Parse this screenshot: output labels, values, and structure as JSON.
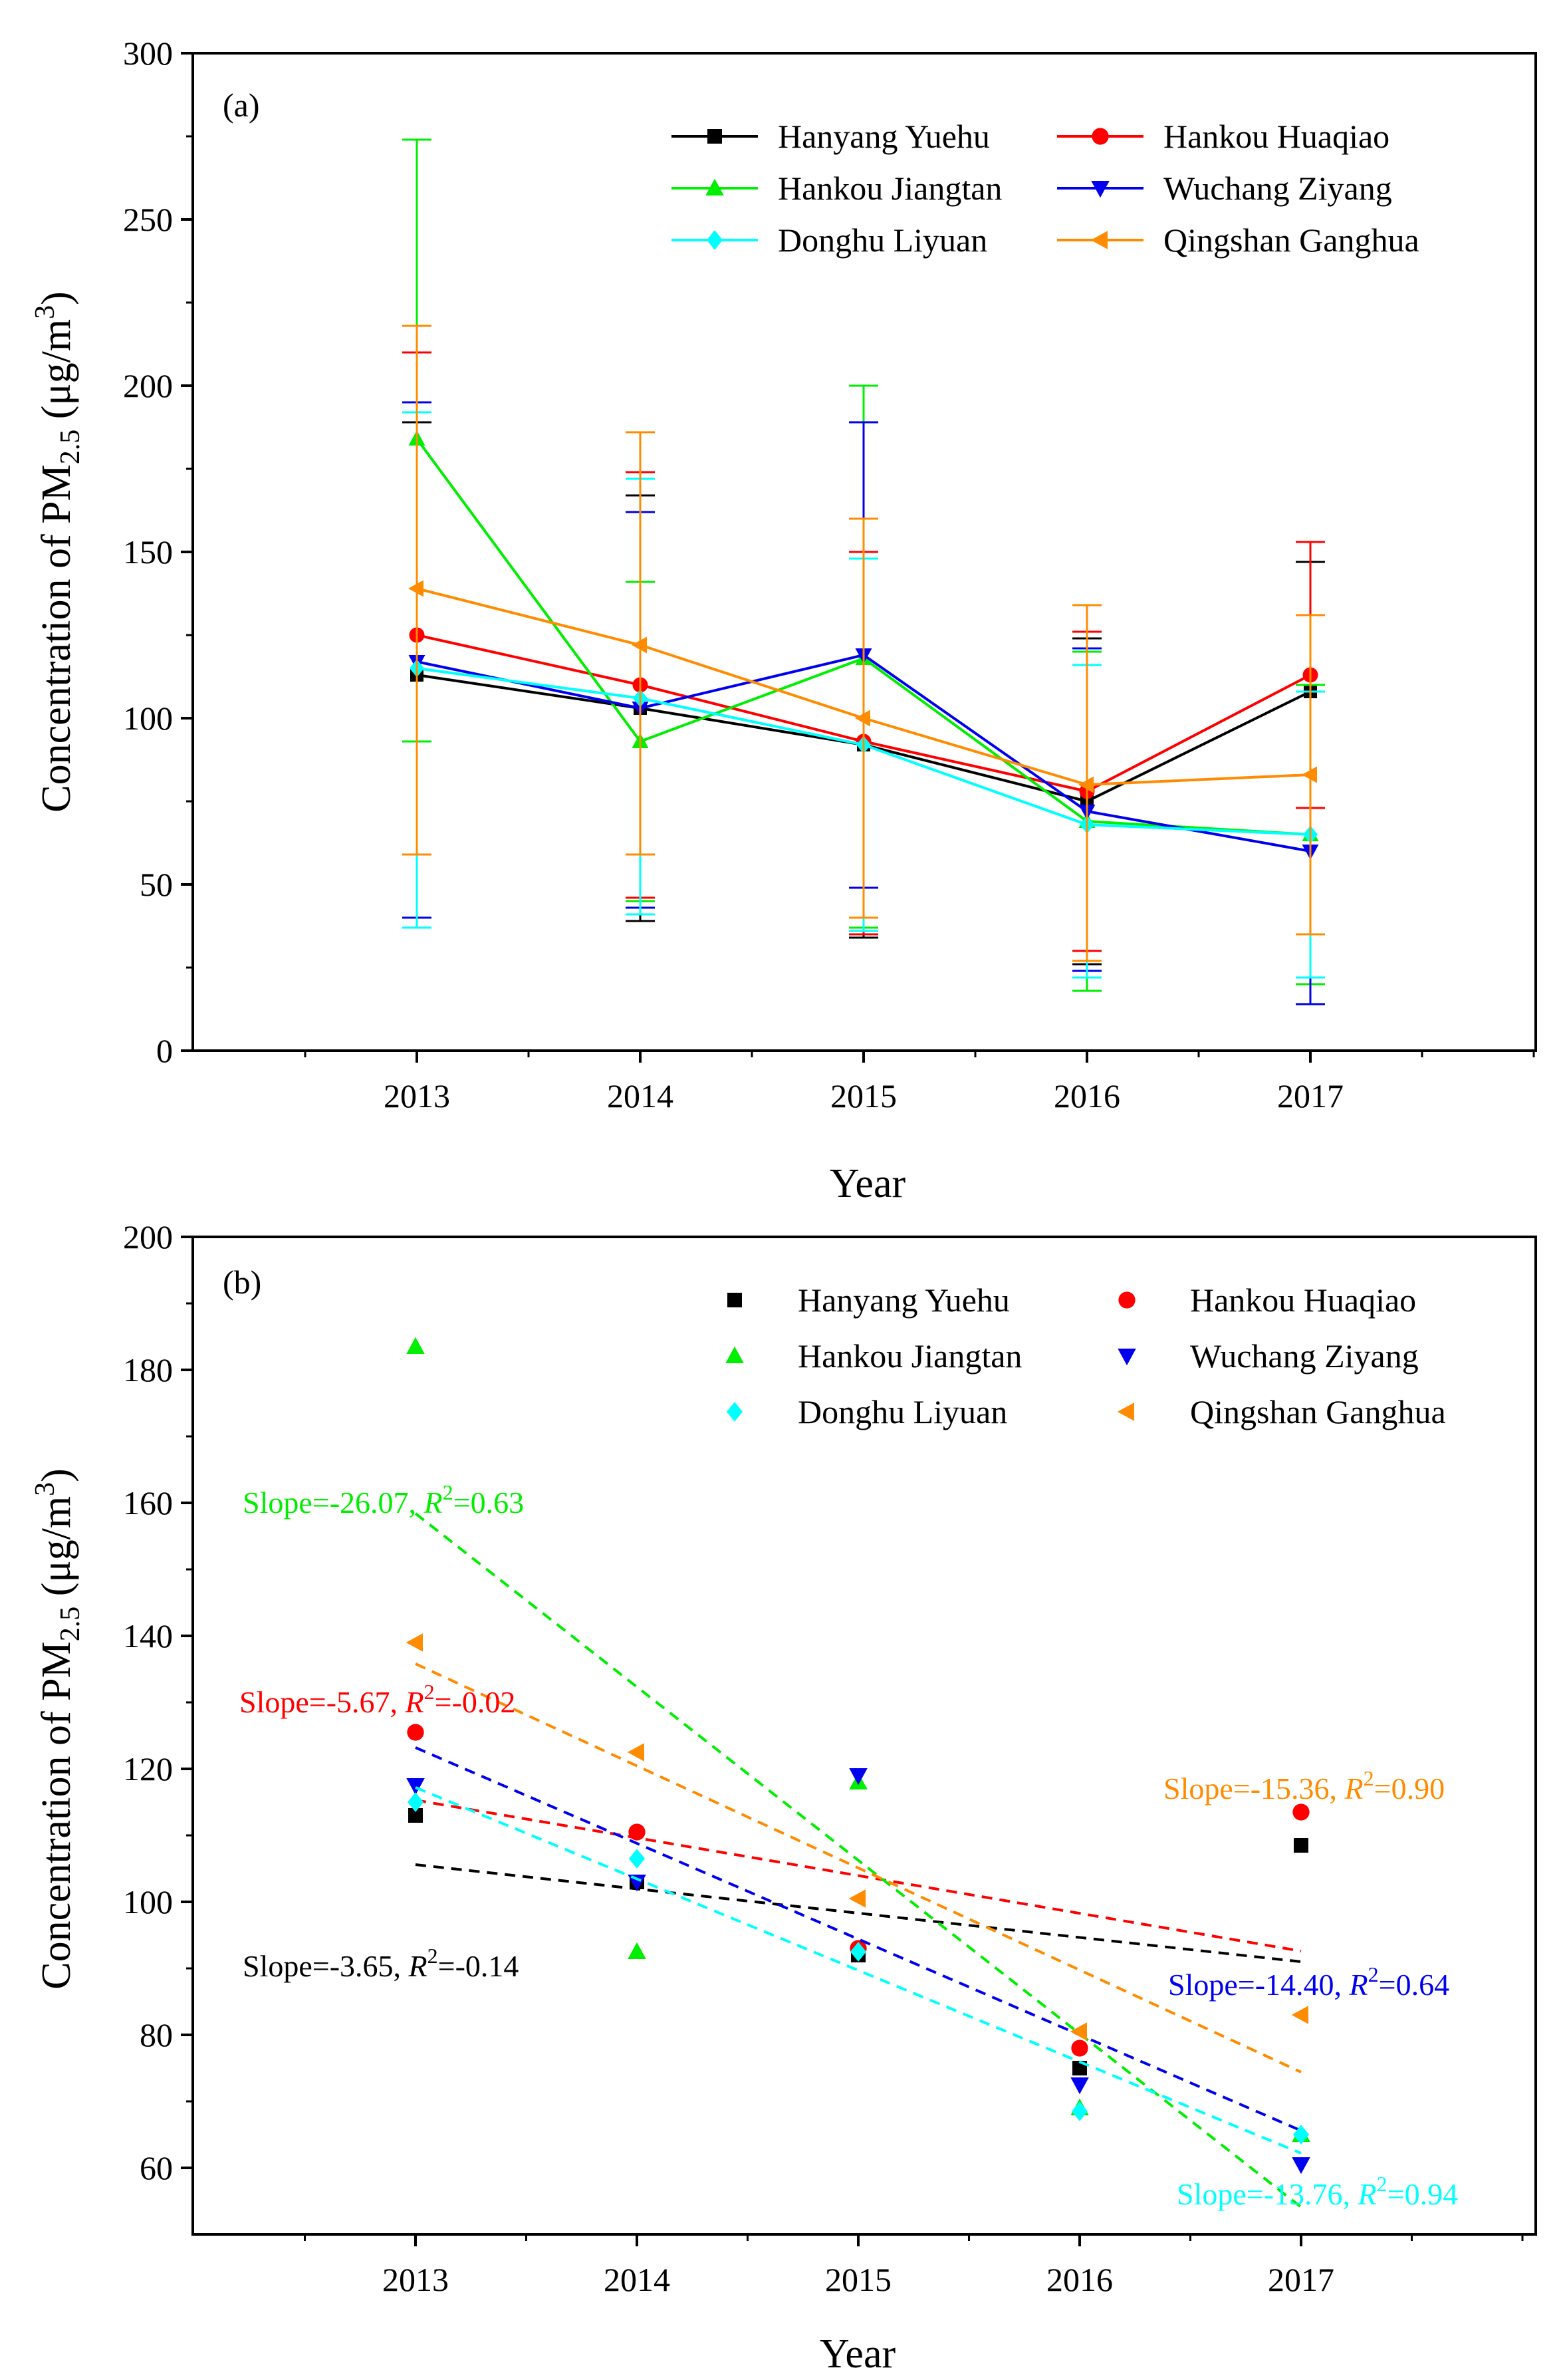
{
  "chart_data": [
    {
      "id": "a",
      "type": "line",
      "panel_label": "(a)",
      "xlabel": "Year",
      "ylabel": "Concentration of PM2.5 (μg/m3)",
      "ylabel_parts": {
        "pre": "Concentration of PM",
        "sub": "2.5",
        "mid": " (μg/m",
        "sup": "3",
        "post": ")"
      },
      "categories": [
        "2013",
        "2014",
        "2015",
        "2016",
        "2017"
      ],
      "ylim": [
        0,
        300
      ],
      "yticks": [
        0,
        50,
        100,
        150,
        200,
        250,
        300
      ],
      "legend_location": "top-right",
      "series": [
        {
          "name": "Hanyang Yuehu",
          "color": "#000000",
          "marker": "square",
          "values": [
            113,
            103,
            92,
            75,
            108
          ],
          "err_low": [
            37,
            39,
            34,
            26,
            20
          ],
          "err_high": [
            189,
            167,
            150,
            124,
            147
          ]
        },
        {
          "name": "Hankou Huaqiao",
          "color": "#ff0000",
          "marker": "circle",
          "values": [
            125,
            110,
            93,
            78,
            113
          ],
          "err_low": [
            40,
            46,
            35,
            30,
            73
          ],
          "err_high": [
            210,
            174,
            150,
            126,
            153
          ]
        },
        {
          "name": "Hankou Jiangtan",
          "color": "#00ee00",
          "marker": "triangle-up",
          "values": [
            184,
            93,
            118,
            69,
            65
          ],
          "err_low": [
            93,
            45,
            37,
            18,
            20
          ],
          "err_high": [
            274,
            141,
            200,
            120,
            110
          ]
        },
        {
          "name": "Wuchang Ziyang",
          "color": "#0000ee",
          "marker": "triangle-down",
          "values": [
            117,
            103,
            119,
            72,
            60
          ],
          "err_low": [
            40,
            43,
            49,
            24,
            14
          ],
          "err_high": [
            195,
            162,
            189,
            121,
            108
          ]
        },
        {
          "name": "Donghu Liyuan",
          "color": "#00ffff",
          "marker": "diamond",
          "values": [
            115,
            106,
            92,
            68,
            65
          ],
          "err_low": [
            37,
            41,
            36,
            22,
            22
          ],
          "err_high": [
            192,
            172,
            148,
            116,
            108
          ]
        },
        {
          "name": "Qingshan Ganghua",
          "color": "#ff8c00",
          "marker": "triangle-left",
          "values": [
            139,
            122,
            100,
            80,
            83
          ],
          "err_low": [
            59,
            59,
            40,
            27,
            35
          ],
          "err_high": [
            218,
            186,
            160,
            134,
            131
          ]
        }
      ]
    },
    {
      "id": "b",
      "type": "scatter",
      "panel_label": "(b)",
      "xlabel": "Year",
      "ylabel": "Concentration of PM2.5 (μg/m3)",
      "ylabel_parts": {
        "pre": "Concentration of PM",
        "sub": "2.5",
        "mid": " (μg/m",
        "sup": "3",
        "post": ")"
      },
      "categories": [
        "2013",
        "2014",
        "2015",
        "2016",
        "2017"
      ],
      "ylim": [
        50,
        200
      ],
      "yticks": [
        60,
        80,
        100,
        120,
        140,
        160,
        180,
        200
      ],
      "legend_location": "top-right",
      "series": [
        {
          "name": "Hanyang Yuehu",
          "color": "#000000",
          "marker": "square",
          "values": [
            113,
            103,
            92,
            75,
            108.5
          ],
          "trend": {
            "start": 105.6,
            "end": 91.0,
            "slope_text": "Slope=-3.65, ",
            "r2_label": "R",
            "r2_sup": "2",
            "r2_text": "=-0.14"
          }
        },
        {
          "name": "Hankou Huaqiao",
          "color": "#ff0000",
          "marker": "circle",
          "values": [
            125.5,
            110.5,
            93,
            78,
            113.5
          ],
          "trend": {
            "start": 115.3,
            "end": 92.6,
            "slope_text": "Slope=-5.67, ",
            "r2_label": "R",
            "r2_sup": "2",
            "r2_text": "=-0.02"
          }
        },
        {
          "name": "Hankou Jiangtan",
          "color": "#00ee00",
          "marker": "triangle-up",
          "values": [
            183.5,
            92.5,
            118,
            69,
            65
          ],
          "trend": {
            "start": 158.4,
            "end": 54.1,
            "slope_text": "Slope=-26.07, ",
            "r2_label": "R",
            "r2_sup": "2",
            "r2_text": "=0.63"
          }
        },
        {
          "name": "Wuchang Ziyang",
          "color": "#0000ee",
          "marker": "triangle-down",
          "values": [
            117.5,
            103,
            119,
            72.5,
            60.5
          ],
          "trend": {
            "start": 123.2,
            "end": 65.6,
            "slope_text": "Slope=-14.40, ",
            "r2_label": "R",
            "r2_sup": "2",
            "r2_text": "=0.64"
          }
        },
        {
          "name": "Donghu Liyuan",
          "color": "#00ffff",
          "marker": "diamond",
          "values": [
            115,
            106.5,
            92.5,
            68.5,
            65
          ],
          "trend": {
            "start": 117.2,
            "end": 62.2,
            "slope_text": "Slope=-13.76, ",
            "r2_label": "R",
            "r2_sup": "2",
            "r2_text": "=0.94"
          }
        },
        {
          "name": "Qingshan Ganghua",
          "color": "#ff8c00",
          "marker": "triangle-left",
          "values": [
            139,
            122.5,
            100.5,
            80.5,
            83
          ],
          "trend": {
            "start": 135.8,
            "end": 74.4,
            "slope_text": "Slope=-15.36, ",
            "r2_label": "R",
            "r2_sup": "2",
            "r2_text": "=0.90"
          }
        }
      ]
    }
  ]
}
